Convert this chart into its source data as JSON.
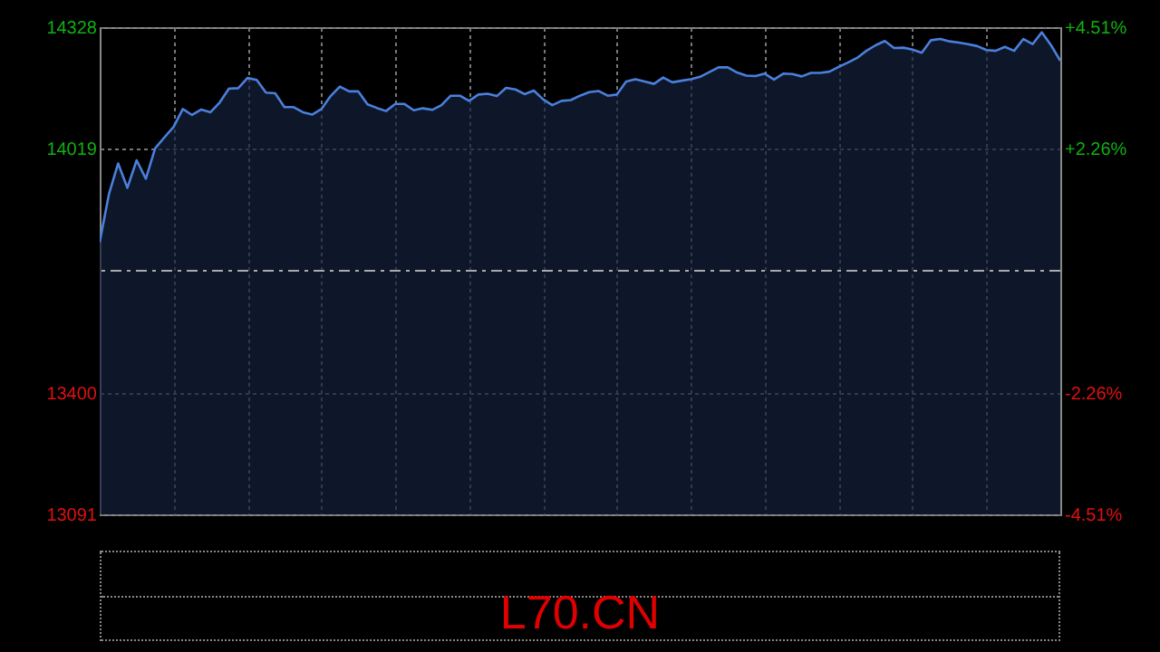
{
  "chart_data": {
    "type": "area",
    "categories": [
      null,
      null,
      null,
      null,
      null,
      null,
      null,
      null,
      null,
      null,
      null,
      null,
      null,
      null,
      null,
      null,
      null,
      null,
      null,
      null,
      null,
      null,
      null,
      null,
      null,
      null,
      null,
      null,
      null,
      null,
      null,
      null,
      null,
      null,
      null,
      null,
      null,
      null,
      null,
      null,
      null,
      null,
      null,
      null,
      null,
      null,
      null,
      null,
      null,
      null,
      null,
      null,
      null,
      null,
      null,
      null,
      null,
      null,
      null,
      null,
      null,
      null,
      null,
      null,
      null,
      null,
      null,
      null,
      null,
      null,
      null,
      null,
      null,
      null,
      null,
      null,
      null,
      null,
      null,
      null,
      null,
      null,
      null,
      null,
      null,
      null,
      null,
      null,
      null,
      null,
      null,
      null,
      null,
      null,
      null,
      null,
      null,
      null,
      null,
      null,
      null,
      null,
      null,
      null,
      null
    ],
    "series": [
      {
        "color": "#4a80dc",
        "values": [
          13782,
          13904,
          13982,
          13920,
          13990,
          13943,
          14020,
          14048,
          14075,
          14120,
          14105,
          14119,
          14112,
          14137,
          14172,
          14173,
          14199,
          14194,
          14162,
          14160,
          14125,
          14125,
          14112,
          14106,
          14120,
          14153,
          14177,
          14165,
          14165,
          14132,
          14123,
          14115,
          14133,
          14133,
          14117,
          14122,
          14118,
          14130,
          14154,
          14154,
          14141,
          14157,
          14159,
          14153,
          14174,
          14170,
          14158,
          14167,
          14145,
          14130,
          14141,
          14143,
          14154,
          14163,
          14166,
          14154,
          14157,
          14190,
          14196,
          14190,
          14184,
          14200,
          14188,
          14192,
          14196,
          14202,
          14214,
          14226,
          14226,
          14213,
          14205,
          14204,
          14210,
          14195,
          14210,
          14209,
          14203,
          14212,
          14212,
          14215,
          14227,
          14238,
          14250,
          14268,
          14282,
          14293,
          14275,
          14276,
          14271,
          14263,
          14295,
          14298,
          14292,
          14289,
          14285,
          14280,
          14270,
          14268,
          14278,
          14268,
          14298,
          14285,
          14315,
          14282,
          14243
        ]
      }
    ],
    "ylim": [
      13091,
      14328
    ],
    "yticks": [
      13091,
      13400,
      14019,
      14328
    ],
    "y2lim": [
      -4.51,
      4.51
    ],
    "y2ticks": [
      {
        "value": -4.51,
        "label": "-4.51%"
      },
      {
        "value": -2.26,
        "label": "-2.26%"
      },
      {
        "value": 2.26,
        "label": "+2.26%"
      },
      {
        "value": 4.51,
        "label": "+4.51%"
      }
    ],
    "ref_lines": [
      {
        "axis": "y",
        "value": 13709.5,
        "line_style": "dashed"
      }
    ],
    "grid": true,
    "annotations": [
      "L70.CN"
    ]
  }
}
